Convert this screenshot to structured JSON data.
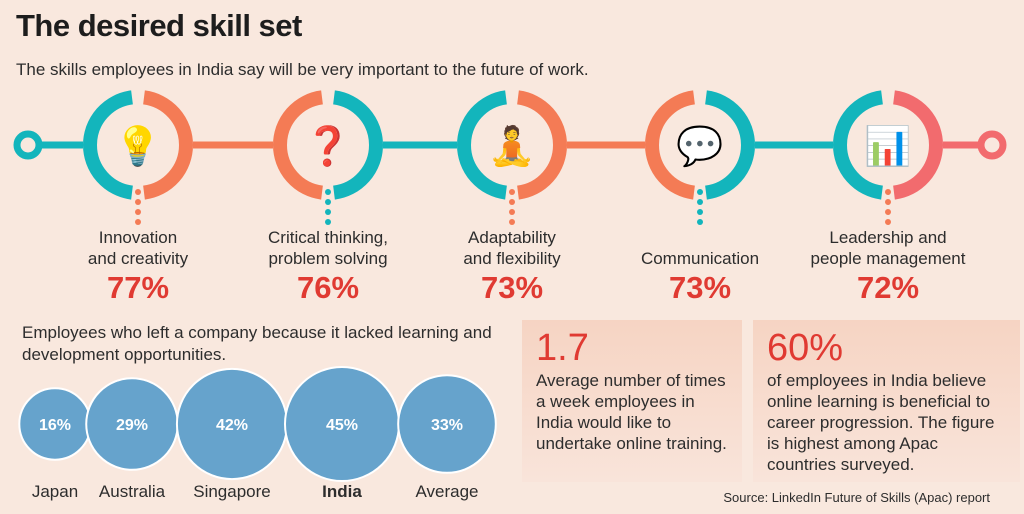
{
  "title": "The desired skill set",
  "subtitle": "The skills employees in India say will be very important to the future of work.",
  "colors": {
    "teal": "#13b5bc",
    "orange": "#f47b55",
    "pink": "#f26b6e",
    "red": "#e03a32",
    "bubble": "#66a3cc",
    "background": "#f9e8de"
  },
  "skills": [
    {
      "label_1": "Innovation",
      "label_2": "and creativity",
      "pct": "77%",
      "icon": "lightbulb-head-icon",
      "left": "teal",
      "right": "orange"
    },
    {
      "label_1": "Critical thinking,",
      "label_2": "problem solving",
      "pct": "76%",
      "icon": "question-maze-icon",
      "left": "orange",
      "right": "teal"
    },
    {
      "label_1": "Adaptability",
      "label_2": "and flexibility",
      "pct": "73%",
      "icon": "flexible-worker-icon",
      "left": "teal",
      "right": "orange"
    },
    {
      "label_1": "",
      "label_2": "Communication",
      "pct": "73%",
      "icon": "communicating-heads-icon",
      "left": "orange",
      "right": "teal"
    },
    {
      "label_1": "Leadership and",
      "label_2": "people management",
      "pct": "72%",
      "icon": "team-presentation-icon",
      "left": "teal",
      "right": "pink"
    }
  ],
  "bubbles": {
    "title": "Employees who left a company because it lacked learning and development opportunities."
  },
  "chart_data": {
    "type": "bubble",
    "title": "Employees who left a company because it lacked learning and development opportunities.",
    "categories": [
      "Japan",
      "Australia",
      "Singapore",
      "India",
      "Average"
    ],
    "values": [
      16,
      29,
      42,
      45,
      33
    ],
    "labels": [
      "16%",
      "29%",
      "42%",
      "45%",
      "33%"
    ],
    "highlight": "India",
    "unit": "%"
  },
  "stats": [
    {
      "big": "1.7",
      "text": "Average number of times a week employees in India would like to undertake online training."
    },
    {
      "big": "60%",
      "text": "of employees in India believe online learning is beneficial to career progression. The figure is highest among Apac countries surveyed."
    }
  ],
  "source": "Source: LinkedIn Future of Skills (Apac) report"
}
